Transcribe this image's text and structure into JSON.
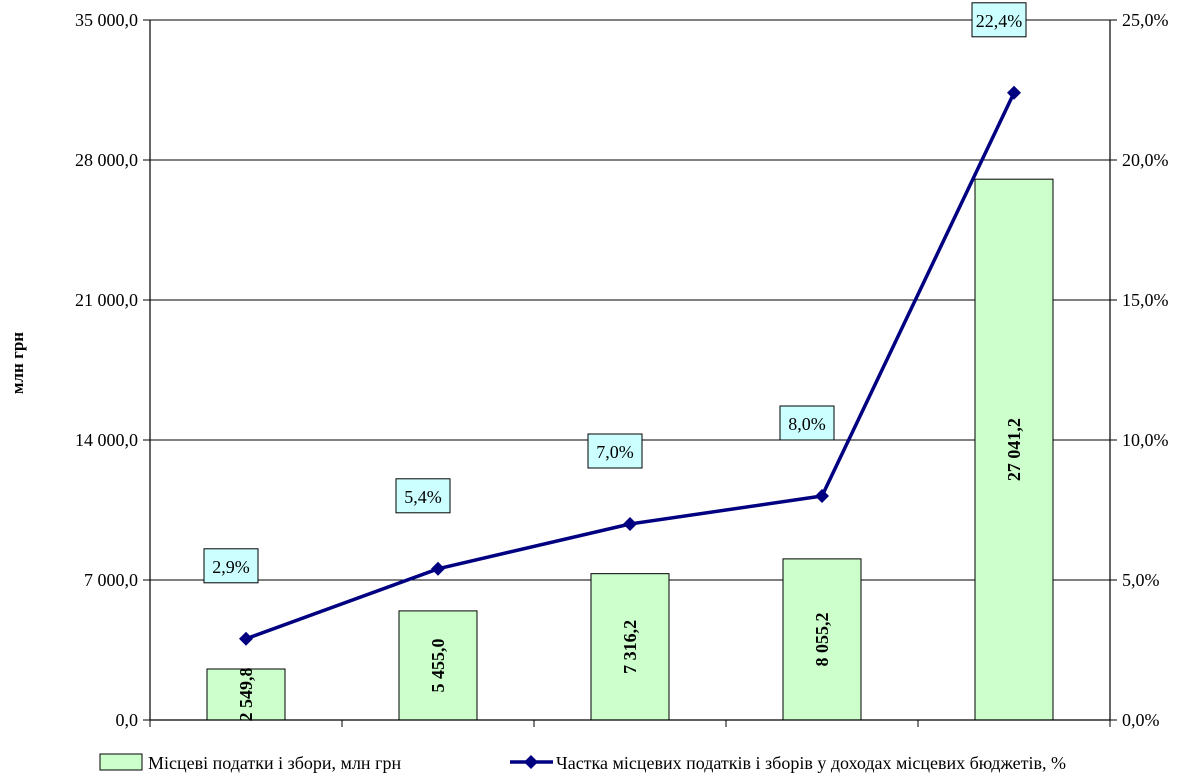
{
  "chart_data": {
    "type": "bar",
    "categories": [
      "",
      "",
      "",
      "",
      ""
    ],
    "ylabel": "млн грн",
    "ylim": [
      0,
      35000
    ],
    "y_ticks": [
      "0,0",
      "7 000,0",
      "14 000,0",
      "21 000,0",
      "28 000,0",
      "35 000,0"
    ],
    "y2lim": [
      0,
      25
    ],
    "y2_ticks": [
      "0,0%",
      "5,0%",
      "10,0%",
      "15,0%",
      "20,0%",
      "25,0%"
    ],
    "grid": true,
    "legend_position": "bottom",
    "series": [
      {
        "name": "Місцеві податки і збори, млн грн",
        "type": "bar",
        "axis": "left",
        "color": "#ccffcc",
        "values": [
          2549.8,
          5455.0,
          7316.2,
          8055.2,
          27041.2
        ],
        "labels": [
          "2 549,8",
          "5 455,0",
          "7 316,2",
          "8 055,2",
          "27 041,2"
        ]
      },
      {
        "name": "Частка місцевих податків і зборів у доходах місцевих бюджетів, %",
        "type": "line",
        "axis": "right",
        "color": "#000080",
        "values": [
          2.9,
          5.4,
          7.0,
          8.0,
          22.4
        ],
        "labels": [
          "2,9%",
          "5,4%",
          "7,0%",
          "8,0%",
          "22,4%"
        ]
      }
    ]
  }
}
